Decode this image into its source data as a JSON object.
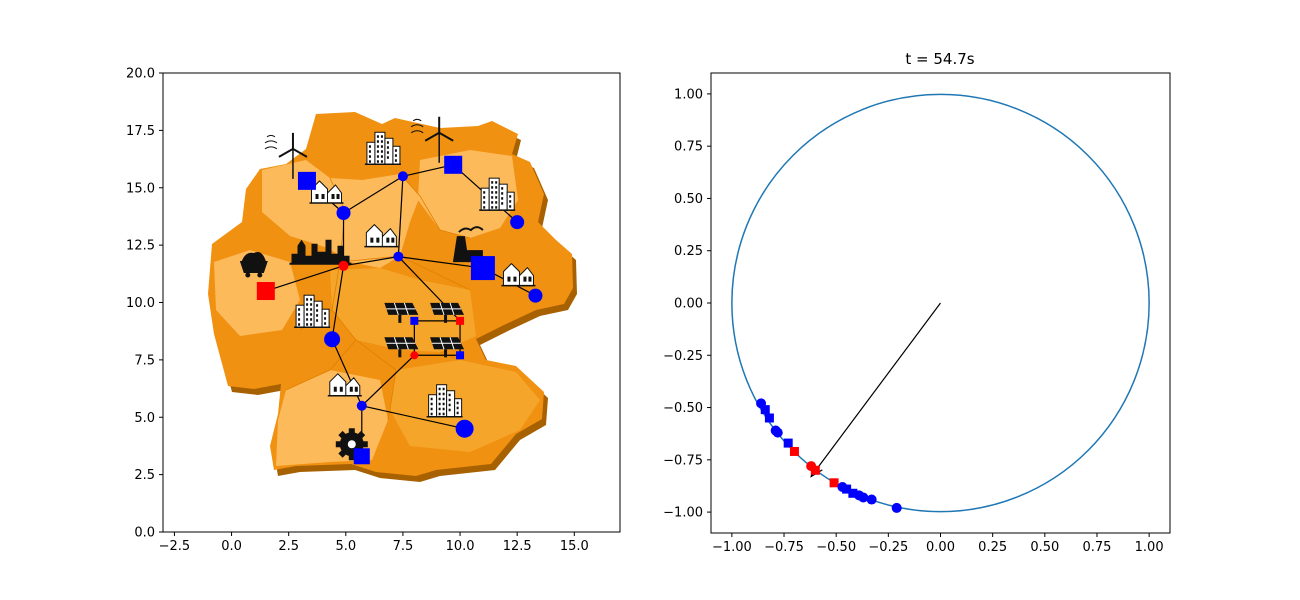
{
  "colors": {
    "map_dark": "#f09112",
    "map_mid": "#f5a52a",
    "map_light": "#fdba5a",
    "map_shadow": "#a86100",
    "edge": "#000000",
    "node_blue": "#0000ff",
    "node_red": "#ff0000",
    "circle": "#1f77b4",
    "arrow": "#000000",
    "icon": "#111111"
  },
  "chart_data": [
    {
      "type": "scatter",
      "title": "",
      "xlabel": "",
      "ylabel": "",
      "xlim": [
        -3,
        17
      ],
      "ylim": [
        0,
        20
      ],
      "xticks": [
        -2.5,
        0,
        2.5,
        5,
        7.5,
        10,
        12.5,
        15
      ],
      "yticks": [
        0,
        2.5,
        5,
        7.5,
        10,
        12.5,
        15,
        17.5,
        20
      ],
      "xtick_labels": [
        "−2.5",
        "0.0",
        "2.5",
        "5.0",
        "7.5",
        "10.0",
        "12.5",
        "15.0"
      ],
      "ytick_labels": [
        "0.0",
        "2.5",
        "5.0",
        "7.5",
        "10.0",
        "12.5",
        "15.0",
        "17.5",
        "20.0"
      ],
      "grid": false,
      "background_map": "Germany states (3D extruded)",
      "nodes": [
        {
          "x": 3.3,
          "y": 15.3,
          "marker": "square",
          "color": "blue",
          "size": 9,
          "icon": "wind-turbine-icon"
        },
        {
          "x": 9.7,
          "y": 16.0,
          "marker": "square",
          "color": "blue",
          "size": 9,
          "icon": "wind-turbine-icon"
        },
        {
          "x": 7.5,
          "y": 15.5,
          "marker": "circle",
          "color": "blue",
          "size": 5,
          "icon": "city-icon"
        },
        {
          "x": 4.9,
          "y": 13.9,
          "marker": "circle",
          "color": "blue",
          "size": 7,
          "icon": "town-icon"
        },
        {
          "x": 12.5,
          "y": 13.5,
          "marker": "circle",
          "color": "blue",
          "size": 7,
          "icon": "city-icon"
        },
        {
          "x": 7.3,
          "y": 12.0,
          "marker": "circle",
          "color": "blue",
          "size": 5,
          "icon": "town-icon"
        },
        {
          "x": 4.9,
          "y": 11.6,
          "marker": "circle",
          "color": "red",
          "size": 5,
          "icon": "skyline-icon"
        },
        {
          "x": 11.0,
          "y": 11.5,
          "marker": "square",
          "color": "blue",
          "size": 12,
          "icon": "power-plant-icon"
        },
        {
          "x": 13.3,
          "y": 10.3,
          "marker": "circle",
          "color": "blue",
          "size": 7,
          "icon": "town-icon"
        },
        {
          "x": 1.5,
          "y": 10.5,
          "marker": "square",
          "color": "red",
          "size": 9,
          "icon": "coal-icon"
        },
        {
          "x": 4.4,
          "y": 8.4,
          "marker": "circle",
          "color": "blue",
          "size": 8,
          "icon": "city-icon"
        },
        {
          "x": 8.0,
          "y": 9.2,
          "marker": "square",
          "color": "blue",
          "size": 4,
          "icon": "solar-panel-icon"
        },
        {
          "x": 10.0,
          "y": 9.2,
          "marker": "square",
          "color": "red",
          "size": 4,
          "icon": "solar-panel-icon"
        },
        {
          "x": 8.0,
          "y": 7.7,
          "marker": "circle",
          "color": "red",
          "size": 4,
          "icon": "solar-panel-icon"
        },
        {
          "x": 10.0,
          "y": 7.7,
          "marker": "square",
          "color": "blue",
          "size": 4,
          "icon": "solar-panel-icon"
        },
        {
          "x": 5.7,
          "y": 5.5,
          "marker": "circle",
          "color": "blue",
          "size": 5,
          "icon": "town-icon"
        },
        {
          "x": 10.2,
          "y": 4.5,
          "marker": "circle",
          "color": "blue",
          "size": 9,
          "icon": "city-icon"
        },
        {
          "x": 5.7,
          "y": 3.3,
          "marker": "square",
          "color": "blue",
          "size": 8,
          "icon": "industry-gear-icon"
        }
      ],
      "edges": [
        [
          3,
          2
        ],
        [
          2,
          1
        ],
        [
          1,
          4
        ],
        [
          3,
          6
        ],
        [
          3,
          0
        ],
        [
          2,
          5
        ],
        [
          5,
          7
        ],
        [
          5,
          6
        ],
        [
          6,
          9
        ],
        [
          6,
          10
        ],
        [
          7,
          8
        ],
        [
          10,
          15
        ],
        [
          15,
          16
        ],
        [
          15,
          13
        ],
        [
          15,
          17
        ],
        [
          13,
          14
        ],
        [
          11,
          13
        ],
        [
          12,
          14
        ],
        [
          12,
          11
        ],
        [
          12,
          5
        ]
      ]
    },
    {
      "type": "scatter",
      "title": "t = 54.7s",
      "xlabel": "",
      "ylabel": "",
      "xlim": [
        -1.1,
        1.1
      ],
      "ylim": [
        -1.1,
        1.1
      ],
      "xticks": [
        -1.0,
        -0.75,
        -0.5,
        -0.25,
        0.0,
        0.25,
        0.5,
        0.75,
        1.0
      ],
      "yticks": [
        -1.0,
        -0.75,
        -0.5,
        -0.25,
        0.0,
        0.25,
        0.5,
        0.75,
        1.0
      ],
      "xtick_labels": [
        "−1.00",
        "−0.75",
        "−0.50",
        "−0.25",
        "0.00",
        "0.25",
        "0.50",
        "0.75",
        "1.00"
      ],
      "ytick_labels": [
        "−1.00",
        "−0.75",
        "−0.50",
        "−0.25",
        "0.00",
        "0.25",
        "0.50",
        "0.75",
        "1.00"
      ],
      "grid": false,
      "unit_circle": {
        "cx": 0,
        "cy": 0,
        "r": 1
      },
      "arrow": {
        "from": [
          0,
          0
        ],
        "to": [
          -0.62,
          -0.83
        ]
      },
      "points": [
        {
          "x": -0.86,
          "y": -0.48,
          "marker": "circle",
          "color": "blue"
        },
        {
          "x": -0.84,
          "y": -0.51,
          "marker": "square",
          "color": "blue"
        },
        {
          "x": -0.82,
          "y": -0.55,
          "marker": "square",
          "color": "blue"
        },
        {
          "x": -0.79,
          "y": -0.61,
          "marker": "circle",
          "color": "blue"
        },
        {
          "x": -0.78,
          "y": -0.62,
          "marker": "circle",
          "color": "blue"
        },
        {
          "x": -0.73,
          "y": -0.67,
          "marker": "square",
          "color": "blue"
        },
        {
          "x": -0.7,
          "y": -0.71,
          "marker": "square",
          "color": "red"
        },
        {
          "x": -0.62,
          "y": -0.78,
          "marker": "circle",
          "color": "red"
        },
        {
          "x": -0.6,
          "y": -0.8,
          "marker": "square",
          "color": "red"
        },
        {
          "x": -0.51,
          "y": -0.86,
          "marker": "square",
          "color": "red"
        },
        {
          "x": -0.47,
          "y": -0.88,
          "marker": "circle",
          "color": "blue"
        },
        {
          "x": -0.45,
          "y": -0.89,
          "marker": "square",
          "color": "blue"
        },
        {
          "x": -0.42,
          "y": -0.91,
          "marker": "square",
          "color": "blue"
        },
        {
          "x": -0.39,
          "y": -0.92,
          "marker": "circle",
          "color": "blue"
        },
        {
          "x": -0.37,
          "y": -0.93,
          "marker": "circle",
          "color": "blue"
        },
        {
          "x": -0.33,
          "y": -0.94,
          "marker": "circle",
          "color": "blue"
        },
        {
          "x": -0.21,
          "y": -0.98,
          "marker": "circle",
          "color": "blue"
        }
      ]
    }
  ]
}
